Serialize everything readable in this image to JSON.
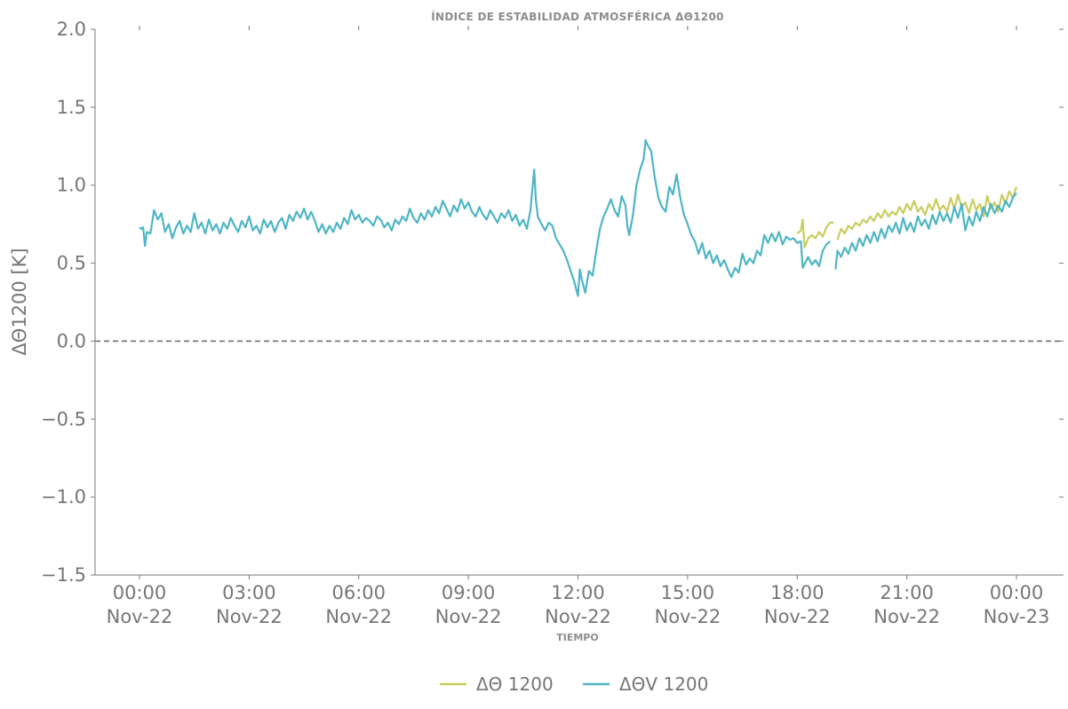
{
  "colors": {
    "theta": "#c9cd5e",
    "thetav": "#4fb5c6",
    "axis": "#7a7a7a",
    "text": "#767676",
    "zero_line": "#6e6e6e"
  },
  "chart_data": {
    "type": "line",
    "title": "ÍNDICE DE ESTABILIDAD ATMOSFÉRICA ΔΘ1200",
    "xlabel": "TIEMPO",
    "ylabel": "ΔΘ1200 [K]",
    "ylim": [
      -1.5,
      2.0
    ],
    "yticks": [
      "2.0",
      "1.5",
      "1.0",
      "0.5",
      "0.0",
      "−0.5",
      "−1.0",
      "−1.5"
    ],
    "xlim_hours": [
      0,
      24
    ],
    "xticks": [
      {
        "time": "00:00",
        "date": "Nov-22"
      },
      {
        "time": "03:00",
        "date": "Nov-22"
      },
      {
        "time": "06:00",
        "date": "Nov-22"
      },
      {
        "time": "09:00",
        "date": "Nov-22"
      },
      {
        "time": "12:00",
        "date": "Nov-22"
      },
      {
        "time": "15:00",
        "date": "Nov-22"
      },
      {
        "time": "18:00",
        "date": "Nov-22"
      },
      {
        "time": "21:00",
        "date": "Nov-22"
      },
      {
        "time": "00:00",
        "date": "Nov-23"
      }
    ],
    "reference_line": {
      "y": 0.0,
      "style": "dashed"
    },
    "grid": false,
    "legend_position": "bottom-center",
    "series": [
      {
        "name": "ΔΘ 1200",
        "color": "#c9cd5e",
        "note_segments": "only from 18:00 onward",
        "points": [
          [
            18.0,
            0.69
          ],
          [
            18.1,
            0.71
          ],
          [
            18.15,
            0.78
          ],
          [
            18.2,
            0.6
          ],
          [
            18.3,
            0.66
          ],
          [
            18.4,
            0.68
          ],
          [
            18.5,
            0.66
          ],
          [
            18.6,
            0.7
          ],
          [
            18.7,
            0.67
          ],
          [
            18.8,
            0.73
          ],
          [
            18.9,
            0.76
          ],
          [
            19.0,
            0.76
          ],
          null,
          [
            19.1,
            0.65
          ],
          [
            19.2,
            0.72
          ],
          [
            19.3,
            0.69
          ],
          [
            19.4,
            0.74
          ],
          [
            19.5,
            0.72
          ],
          [
            19.6,
            0.76
          ],
          [
            19.7,
            0.74
          ],
          [
            19.8,
            0.78
          ],
          [
            19.9,
            0.76
          ],
          [
            20.0,
            0.8
          ],
          [
            20.1,
            0.77
          ],
          [
            20.2,
            0.82
          ],
          [
            20.3,
            0.79
          ],
          [
            20.4,
            0.84
          ],
          [
            20.5,
            0.8
          ],
          [
            20.6,
            0.83
          ],
          [
            20.7,
            0.81
          ],
          [
            20.8,
            0.86
          ],
          [
            20.9,
            0.82
          ],
          [
            21.0,
            0.88
          ],
          [
            21.1,
            0.84
          ],
          [
            21.2,
            0.9
          ],
          [
            21.3,
            0.83
          ],
          [
            21.4,
            0.86
          ],
          [
            21.5,
            0.81
          ],
          [
            21.6,
            0.88
          ],
          [
            21.7,
            0.84
          ],
          [
            21.8,
            0.91
          ],
          [
            21.9,
            0.84
          ],
          [
            22.0,
            0.87
          ],
          [
            22.1,
            0.83
          ],
          [
            22.2,
            0.92
          ],
          [
            22.3,
            0.85
          ],
          [
            22.4,
            0.94
          ],
          [
            22.5,
            0.86
          ],
          [
            22.6,
            0.89
          ],
          [
            22.7,
            0.82
          ],
          [
            22.8,
            0.91
          ],
          [
            22.9,
            0.84
          ],
          [
            23.0,
            0.88
          ],
          [
            23.1,
            0.8
          ],
          [
            23.2,
            0.93
          ],
          [
            23.3,
            0.85
          ],
          [
            23.4,
            0.89
          ],
          [
            23.5,
            0.83
          ],
          [
            23.6,
            0.94
          ],
          [
            23.7,
            0.88
          ],
          [
            23.8,
            0.96
          ],
          [
            23.9,
            0.92
          ],
          [
            24.0,
            0.99
          ]
        ]
      },
      {
        "name": "ΔΘV 1200",
        "color": "#4fb5c6",
        "points": [
          [
            0.0,
            0.73
          ],
          [
            0.05,
            0.72
          ],
          [
            0.1,
            0.73
          ],
          [
            0.15,
            0.61
          ],
          [
            0.2,
            0.7
          ],
          [
            0.3,
            0.69
          ],
          [
            0.4,
            0.84
          ],
          [
            0.5,
            0.78
          ],
          [
            0.6,
            0.82
          ],
          [
            0.7,
            0.7
          ],
          [
            0.8,
            0.75
          ],
          [
            0.9,
            0.66
          ],
          [
            1.0,
            0.73
          ],
          [
            1.1,
            0.77
          ],
          [
            1.2,
            0.69
          ],
          [
            1.3,
            0.74
          ],
          [
            1.4,
            0.7
          ],
          [
            1.5,
            0.82
          ],
          [
            1.6,
            0.72
          ],
          [
            1.7,
            0.76
          ],
          [
            1.8,
            0.69
          ],
          [
            1.9,
            0.78
          ],
          [
            2.0,
            0.71
          ],
          [
            2.1,
            0.75
          ],
          [
            2.2,
            0.69
          ],
          [
            2.3,
            0.76
          ],
          [
            2.4,
            0.72
          ],
          [
            2.5,
            0.79
          ],
          [
            2.6,
            0.74
          ],
          [
            2.7,
            0.7
          ],
          [
            2.8,
            0.77
          ],
          [
            2.9,
            0.73
          ],
          [
            3.0,
            0.8
          ],
          [
            3.1,
            0.71
          ],
          [
            3.2,
            0.74
          ],
          [
            3.3,
            0.69
          ],
          [
            3.4,
            0.78
          ],
          [
            3.5,
            0.73
          ],
          [
            3.6,
            0.77
          ],
          [
            3.7,
            0.7
          ],
          [
            3.8,
            0.76
          ],
          [
            3.9,
            0.79
          ],
          [
            4.0,
            0.72
          ],
          [
            4.1,
            0.81
          ],
          [
            4.2,
            0.77
          ],
          [
            4.3,
            0.83
          ],
          [
            4.4,
            0.79
          ],
          [
            4.5,
            0.85
          ],
          [
            4.6,
            0.78
          ],
          [
            4.7,
            0.83
          ],
          [
            4.8,
            0.77
          ],
          [
            4.9,
            0.7
          ],
          [
            5.0,
            0.75
          ],
          [
            5.1,
            0.69
          ],
          [
            5.2,
            0.74
          ],
          [
            5.3,
            0.7
          ],
          [
            5.4,
            0.76
          ],
          [
            5.5,
            0.72
          ],
          [
            5.6,
            0.79
          ],
          [
            5.7,
            0.75
          ],
          [
            5.8,
            0.84
          ],
          [
            5.9,
            0.78
          ],
          [
            6.0,
            0.81
          ],
          [
            6.1,
            0.76
          ],
          [
            6.2,
            0.79
          ],
          [
            6.3,
            0.77
          ],
          [
            6.4,
            0.74
          ],
          [
            6.5,
            0.8
          ],
          [
            6.6,
            0.78
          ],
          [
            6.7,
            0.73
          ],
          [
            6.8,
            0.76
          ],
          [
            6.9,
            0.71
          ],
          [
            7.0,
            0.78
          ],
          [
            7.1,
            0.75
          ],
          [
            7.2,
            0.8
          ],
          [
            7.3,
            0.77
          ],
          [
            7.4,
            0.85
          ],
          [
            7.5,
            0.79
          ],
          [
            7.6,
            0.76
          ],
          [
            7.7,
            0.82
          ],
          [
            7.8,
            0.78
          ],
          [
            7.9,
            0.84
          ],
          [
            8.0,
            0.8
          ],
          [
            8.1,
            0.86
          ],
          [
            8.2,
            0.82
          ],
          [
            8.3,
            0.9
          ],
          [
            8.4,
            0.85
          ],
          [
            8.5,
            0.8
          ],
          [
            8.6,
            0.87
          ],
          [
            8.7,
            0.83
          ],
          [
            8.8,
            0.91
          ],
          [
            8.9,
            0.85
          ],
          [
            9.0,
            0.89
          ],
          [
            9.1,
            0.83
          ],
          [
            9.2,
            0.8
          ],
          [
            9.3,
            0.86
          ],
          [
            9.4,
            0.81
          ],
          [
            9.5,
            0.78
          ],
          [
            9.6,
            0.84
          ],
          [
            9.7,
            0.8
          ],
          [
            9.8,
            0.76
          ],
          [
            9.9,
            0.82
          ],
          [
            10.0,
            0.79
          ],
          [
            10.1,
            0.84
          ],
          [
            10.2,
            0.77
          ],
          [
            10.3,
            0.81
          ],
          [
            10.4,
            0.74
          ],
          [
            10.5,
            0.78
          ],
          [
            10.6,
            0.72
          ],
          [
            10.7,
            0.84
          ],
          [
            10.8,
            1.1
          ],
          [
            10.85,
            0.9
          ],
          [
            10.9,
            0.8
          ],
          [
            11.0,
            0.75
          ],
          [
            11.1,
            0.71
          ],
          [
            11.2,
            0.76
          ],
          [
            11.3,
            0.74
          ],
          [
            11.4,
            0.66
          ],
          [
            11.5,
            0.62
          ],
          [
            11.6,
            0.58
          ],
          [
            11.7,
            0.52
          ],
          [
            11.8,
            0.45
          ],
          [
            11.9,
            0.38
          ],
          [
            12.0,
            0.29
          ],
          [
            12.05,
            0.46
          ],
          [
            12.1,
            0.4
          ],
          [
            12.2,
            0.31
          ],
          [
            12.3,
            0.45
          ],
          [
            12.4,
            0.42
          ],
          [
            12.5,
            0.58
          ],
          [
            12.6,
            0.72
          ],
          [
            12.7,
            0.8
          ],
          [
            12.8,
            0.85
          ],
          [
            12.9,
            0.91
          ],
          [
            13.0,
            0.84
          ],
          [
            13.1,
            0.8
          ],
          [
            13.2,
            0.93
          ],
          [
            13.3,
            0.87
          ],
          [
            13.35,
            0.74
          ],
          [
            13.4,
            0.68
          ],
          [
            13.5,
            0.8
          ],
          [
            13.6,
            1.0
          ],
          [
            13.7,
            1.1
          ],
          [
            13.8,
            1.17
          ],
          [
            13.85,
            1.29
          ],
          [
            13.9,
            1.26
          ],
          [
            14.0,
            1.22
          ],
          [
            14.1,
            1.05
          ],
          [
            14.2,
            0.92
          ],
          [
            14.3,
            0.86
          ],
          [
            14.4,
            0.83
          ],
          [
            14.5,
            0.99
          ],
          [
            14.6,
            0.94
          ],
          [
            14.7,
            1.07
          ],
          [
            14.8,
            0.92
          ],
          [
            14.9,
            0.81
          ],
          [
            15.0,
            0.75
          ],
          [
            15.1,
            0.68
          ],
          [
            15.2,
            0.64
          ],
          [
            15.3,
            0.56
          ],
          [
            15.4,
            0.63
          ],
          [
            15.5,
            0.53
          ],
          [
            15.6,
            0.58
          ],
          [
            15.7,
            0.5
          ],
          [
            15.8,
            0.55
          ],
          [
            15.9,
            0.48
          ],
          [
            16.0,
            0.52
          ],
          [
            16.1,
            0.46
          ],
          [
            16.2,
            0.41
          ],
          [
            16.3,
            0.47
          ],
          [
            16.4,
            0.44
          ],
          [
            16.5,
            0.56
          ],
          [
            16.6,
            0.49
          ],
          [
            16.7,
            0.53
          ],
          [
            16.8,
            0.5
          ],
          [
            16.9,
            0.58
          ],
          [
            17.0,
            0.55
          ],
          [
            17.1,
            0.68
          ],
          [
            17.2,
            0.63
          ],
          [
            17.3,
            0.69
          ],
          [
            17.4,
            0.64
          ],
          [
            17.5,
            0.7
          ],
          [
            17.6,
            0.62
          ],
          [
            17.7,
            0.67
          ],
          [
            17.8,
            0.65
          ],
          [
            17.9,
            0.66
          ],
          [
            18.0,
            0.63
          ],
          [
            18.1,
            0.64
          ],
          [
            18.15,
            0.47
          ],
          [
            18.3,
            0.54
          ],
          [
            18.4,
            0.49
          ],
          [
            18.5,
            0.52
          ],
          [
            18.6,
            0.48
          ],
          [
            18.7,
            0.58
          ],
          [
            18.8,
            0.62
          ],
          [
            18.9,
            0.64
          ],
          null,
          [
            19.05,
            0.46
          ],
          [
            19.1,
            0.58
          ],
          [
            19.2,
            0.54
          ],
          [
            19.3,
            0.6
          ],
          [
            19.4,
            0.56
          ],
          [
            19.5,
            0.63
          ],
          [
            19.6,
            0.58
          ],
          [
            19.7,
            0.66
          ],
          [
            19.8,
            0.61
          ],
          [
            19.9,
            0.68
          ],
          [
            20.0,
            0.63
          ],
          [
            20.1,
            0.7
          ],
          [
            20.2,
            0.64
          ],
          [
            20.3,
            0.72
          ],
          [
            20.4,
            0.66
          ],
          [
            20.5,
            0.74
          ],
          [
            20.6,
            0.7
          ],
          [
            20.7,
            0.76
          ],
          [
            20.8,
            0.69
          ],
          [
            20.9,
            0.79
          ],
          [
            21.0,
            0.71
          ],
          [
            21.1,
            0.76
          ],
          [
            21.2,
            0.7
          ],
          [
            21.3,
            0.8
          ],
          [
            21.4,
            0.74
          ],
          [
            21.5,
            0.78
          ],
          [
            21.6,
            0.72
          ],
          [
            21.7,
            0.81
          ],
          [
            21.8,
            0.75
          ],
          [
            21.9,
            0.83
          ],
          [
            22.0,
            0.77
          ],
          [
            22.1,
            0.82
          ],
          [
            22.2,
            0.76
          ],
          [
            22.3,
            0.86
          ],
          [
            22.4,
            0.79
          ],
          [
            22.5,
            0.88
          ],
          [
            22.6,
            0.71
          ],
          [
            22.7,
            0.8
          ],
          [
            22.8,
            0.74
          ],
          [
            22.9,
            0.83
          ],
          [
            23.0,
            0.77
          ],
          [
            23.1,
            0.86
          ],
          [
            23.2,
            0.8
          ],
          [
            23.3,
            0.88
          ],
          [
            23.4,
            0.82
          ],
          [
            23.5,
            0.87
          ],
          [
            23.6,
            0.83
          ],
          [
            23.7,
            0.9
          ],
          [
            23.8,
            0.86
          ],
          [
            23.9,
            0.92
          ],
          [
            24.0,
            0.95
          ]
        ]
      }
    ]
  }
}
